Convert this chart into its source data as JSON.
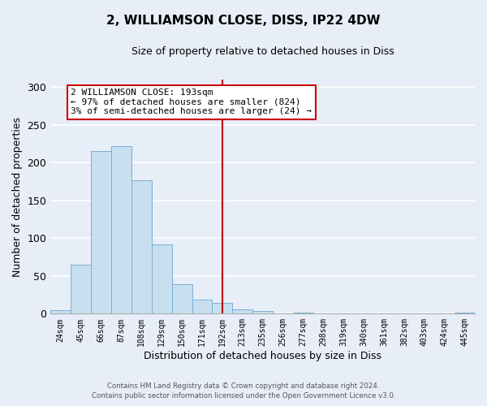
{
  "title": "2, WILLIAMSON CLOSE, DISS, IP22 4DW",
  "subtitle": "Size of property relative to detached houses in Diss",
  "xlabel": "Distribution of detached houses by size in Diss",
  "ylabel": "Number of detached properties",
  "bin_labels": [
    "24sqm",
    "45sqm",
    "66sqm",
    "87sqm",
    "108sqm",
    "129sqm",
    "150sqm",
    "171sqm",
    "192sqm",
    "213sqm",
    "235sqm",
    "256sqm",
    "277sqm",
    "298sqm",
    "319sqm",
    "340sqm",
    "361sqm",
    "382sqm",
    "403sqm",
    "424sqm",
    "445sqm"
  ],
  "bar_heights": [
    5,
    65,
    215,
    222,
    177,
    92,
    39,
    19,
    14,
    6,
    4,
    0,
    1,
    0,
    0,
    0,
    0,
    0,
    0,
    0,
    1
  ],
  "bar_color": "#c8dff0",
  "bar_edge_color": "#7aafd4",
  "vline_x": 8,
  "vline_color": "#bb0000",
  "annotation_title": "2 WILLIAMSON CLOSE: 193sqm",
  "annotation_line1": "← 97% of detached houses are smaller (824)",
  "annotation_line2": "3% of semi-detached houses are larger (24) →",
  "annotation_box_facecolor": "#ffffff",
  "annotation_box_edgecolor": "#cc0000",
  "footer1": "Contains HM Land Registry data © Crown copyright and database right 2024.",
  "footer2": "Contains public sector information licensed under the Open Government Licence v3.0.",
  "ylim": [
    0,
    310
  ],
  "yticks": [
    0,
    50,
    100,
    150,
    200,
    250,
    300
  ],
  "background_color": "#e8eef8",
  "grid_color": "#ffffff",
  "title_fontsize": 11,
  "subtitle_fontsize": 9
}
